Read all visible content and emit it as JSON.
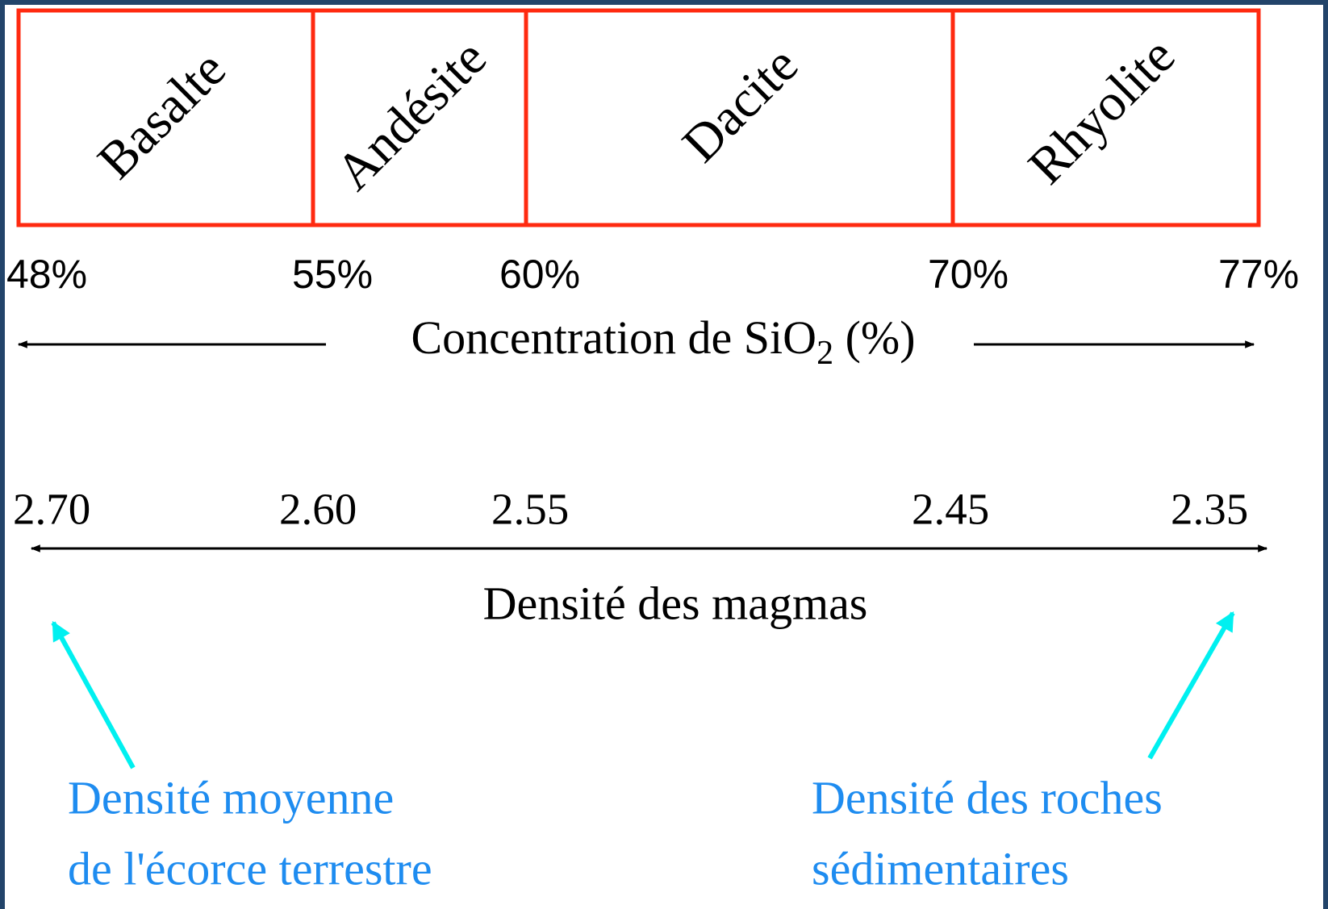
{
  "rock_types": [
    "Basalte",
    "Andésite",
    "Dacite",
    "Rhyolite"
  ],
  "sio2_labels": [
    "48%",
    "55%",
    "60%",
    "70%",
    "77%"
  ],
  "sio2_axis": {
    "text": "Concentration de SiO",
    "subscript": "2",
    "suffix": " (%)"
  },
  "density_labels": [
    "2.70",
    "2.60",
    "2.55",
    "2.45",
    "2.35"
  ],
  "density_axis": "Densité des magmas",
  "annotations": [
    {
      "lines": [
        "Densité moyenne",
        "de l'écorce terrestre"
      ]
    },
    {
      "lines": [
        "Densité des roches",
        "sédimentaires"
      ]
    }
  ]
}
